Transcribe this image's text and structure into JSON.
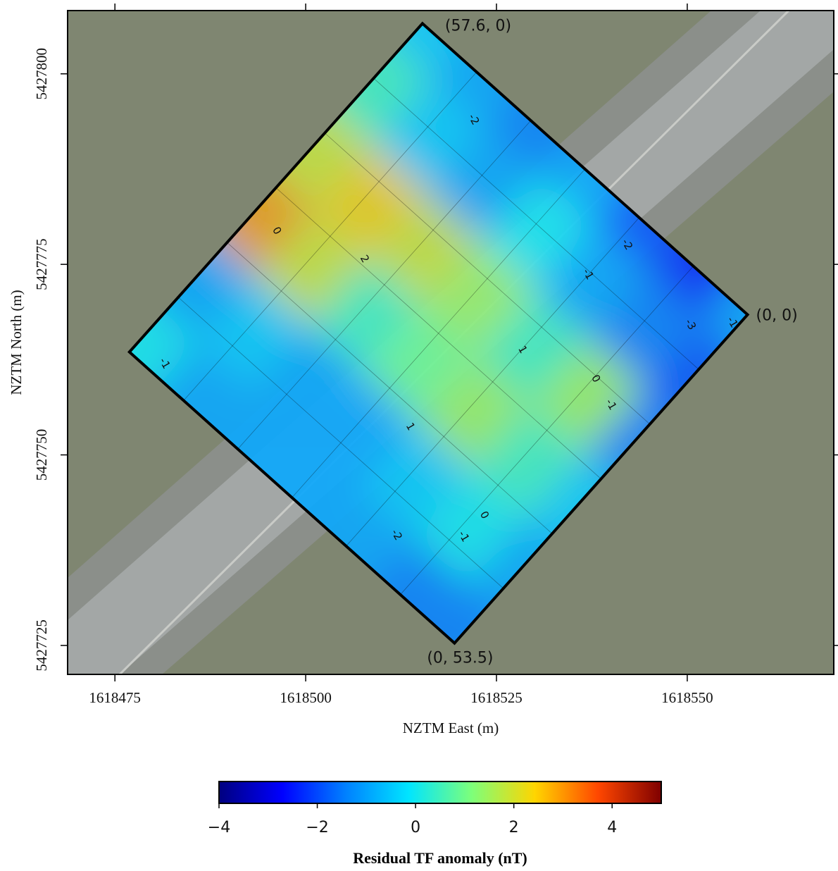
{
  "chart_data": {
    "type": "heatmap",
    "xlabel": "NZTM East (m)",
    "ylabel": "NZTM North (m)",
    "xlim": [
      1618468.8,
      1618569.2
    ],
    "xticks": [
      1618475,
      1618500,
      1618525,
      1618550
    ],
    "ylim": [
      5427721.2,
      5427808.3
    ],
    "yticks": [
      5427725,
      5427750,
      5427775,
      5427800
    ],
    "corners": [
      {
        "label": "(57.6, 0)",
        "x": 1618515.3,
        "y": 5427806.6
      },
      {
        "label": "(0, 0)",
        "x": 1618557.9,
        "y": 5427768.4
      },
      {
        "label": "(0, 53.5)",
        "x": 1618519.5,
        "y": 5427725.3
      }
    ],
    "grid": {
      "u": [
        0,
        9.6,
        19.2,
        28.8,
        38.4,
        48,
        57.6
      ],
      "v": [
        0,
        10.7,
        21.4,
        32.1,
        42.8,
        53.5
      ],
      "values": [
        [
          -1,
          -2.5,
          -2,
          -1,
          -1.5,
          -1,
          -0.5
        ],
        [
          -2,
          -1.5,
          -1,
          0,
          -1,
          -0.5,
          0.5
        ],
        [
          -1.5,
          1.5,
          0.5,
          1.5,
          2,
          2.5,
          2
        ],
        [
          -0.5,
          0.5,
          1.5,
          1,
          0.5,
          2,
          3
        ],
        [
          -1,
          0,
          -0.5,
          -1,
          -1,
          -0.5,
          -1
        ],
        [
          -1.5,
          -1.5,
          -1,
          -1,
          -1,
          -1,
          0
        ]
      ]
    },
    "contour_labels": [
      {
        "label": "2",
        "x": 1618507.7,
        "y": 5427775.7
      },
      {
        "label": "-2",
        "x": 1618542.1,
        "y": 5427777.6
      },
      {
        "label": "-2",
        "x": 1618522.0,
        "y": 5427794.0
      },
      {
        "label": "0",
        "x": 1618496.2,
        "y": 5427779.4
      },
      {
        "label": "-1",
        "x": 1618537.0,
        "y": 5427773.7
      },
      {
        "label": "-3",
        "x": 1618550.4,
        "y": 5427767.1
      },
      {
        "label": "-1",
        "x": 1618555.9,
        "y": 5427767.4
      },
      {
        "label": "1",
        "x": 1618528.4,
        "y": 5427763.8
      },
      {
        "label": "0",
        "x": 1618538.0,
        "y": 5427760.0
      },
      {
        "label": "-1",
        "x": 1618540.0,
        "y": 5427756.6
      },
      {
        "label": "-1",
        "x": 1618481.5,
        "y": 5427762.0
      },
      {
        "label": "1",
        "x": 1618513.7,
        "y": 5427753.7
      },
      {
        "label": "0",
        "x": 1618523.4,
        "y": 5427742.1
      },
      {
        "label": "-1",
        "x": 1618520.7,
        "y": 5427739.3
      },
      {
        "label": "-2",
        "x": 1618511.9,
        "y": 5427739.5
      }
    ],
    "colormap": [
      "#00007f",
      "#0000ff",
      "#0080ff",
      "#00e5ff",
      "#7dff7a",
      "#ffd500",
      "#ff4700",
      "#7f0000"
    ],
    "colorbar": {
      "label": "Residual TF anomaly (nT)",
      "lim": [
        -4,
        5
      ],
      "ticks": [
        {
          "value": -4,
          "label": "−4"
        },
        {
          "value": -2,
          "label": "−2"
        },
        0,
        2,
        4
      ]
    }
  }
}
